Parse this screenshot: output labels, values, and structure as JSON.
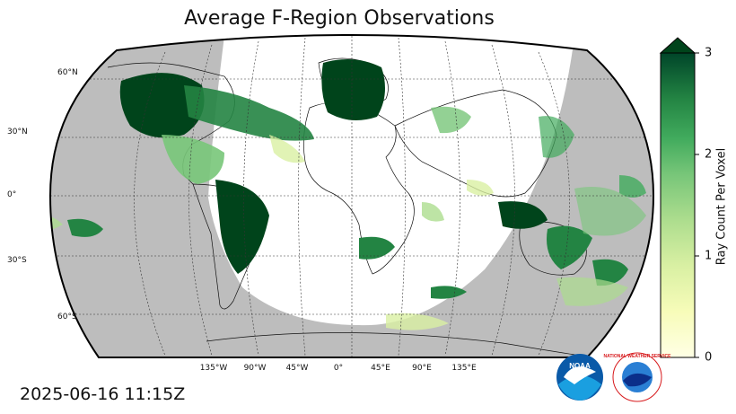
{
  "title": "Average F-Region Observations",
  "timestamp": "2025-06-16 11:15Z",
  "colorbar": {
    "label": "Ray Count Per Voxel",
    "ticks": [
      "0",
      "1",
      "2",
      "3"
    ],
    "colormap": "YlGn",
    "range": [
      0,
      3
    ],
    "extend": "max"
  },
  "map": {
    "projection": "Robinson",
    "ocean_color": "#bdbdbd",
    "land_color": "#ffffff",
    "lon_labels": [
      "135°W",
      "90°W",
      "45°W",
      "0°",
      "45°E",
      "90°E",
      "135°E"
    ],
    "lat_labels": [
      "60°N",
      "30°N",
      "0°",
      "30°S",
      "60°S"
    ]
  },
  "logos": {
    "noaa": "NOAA",
    "nws_text": "NATIONAL WEATHER SERVICE"
  },
  "colors": {
    "dark_green": "#00441b",
    "mid_green": "#41ab5d",
    "light_green": "#a1d99b",
    "pale_yellow": "#ffffe5",
    "noaa_blue": "#0a5aa8",
    "nws_red": "#d7191c"
  }
}
